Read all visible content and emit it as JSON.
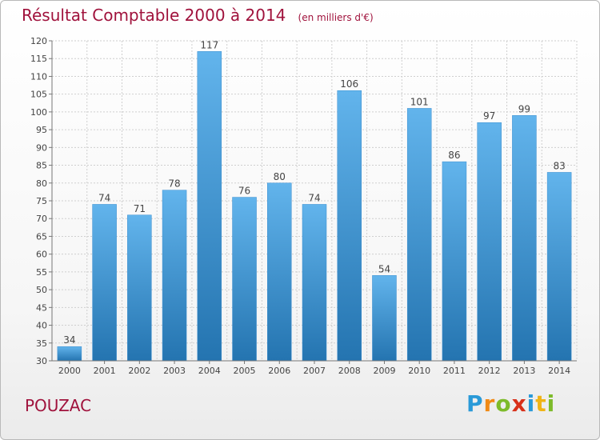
{
  "title": "Résultat Comptable 2000 à 2014",
  "unit_note": "(en milliers d'€)",
  "city": "POUZAC",
  "logo": {
    "text": "Proxiti",
    "letter_colors": [
      "#2a9ad8",
      "#f08a16",
      "#7dbb2a",
      "#d8301a",
      "#2a9ad8",
      "#f0b416",
      "#7dbb2a"
    ]
  },
  "colors": {
    "title": "#a0123c",
    "bar_light": "#62b4ec",
    "bar_dark": "#2474b0",
    "grid": "#cfcfcf",
    "label": "#444444"
  },
  "chart_data": {
    "type": "bar",
    "title": "Résultat Comptable 2000 à 2014",
    "categories": [
      "2000",
      "2001",
      "2002",
      "2003",
      "2004",
      "2005",
      "2006",
      "2007",
      "2008",
      "2009",
      "2010",
      "2011",
      "2012",
      "2013",
      "2014"
    ],
    "values": [
      34,
      74,
      71,
      78,
      117,
      76,
      80,
      74,
      106,
      54,
      101,
      86,
      97,
      99,
      83
    ],
    "ylim": [
      30,
      120
    ],
    "yticks": [
      30,
      35,
      40,
      45,
      50,
      55,
      60,
      65,
      70,
      75,
      80,
      85,
      90,
      95,
      100,
      105,
      110,
      115,
      120
    ],
    "grid": true
  }
}
